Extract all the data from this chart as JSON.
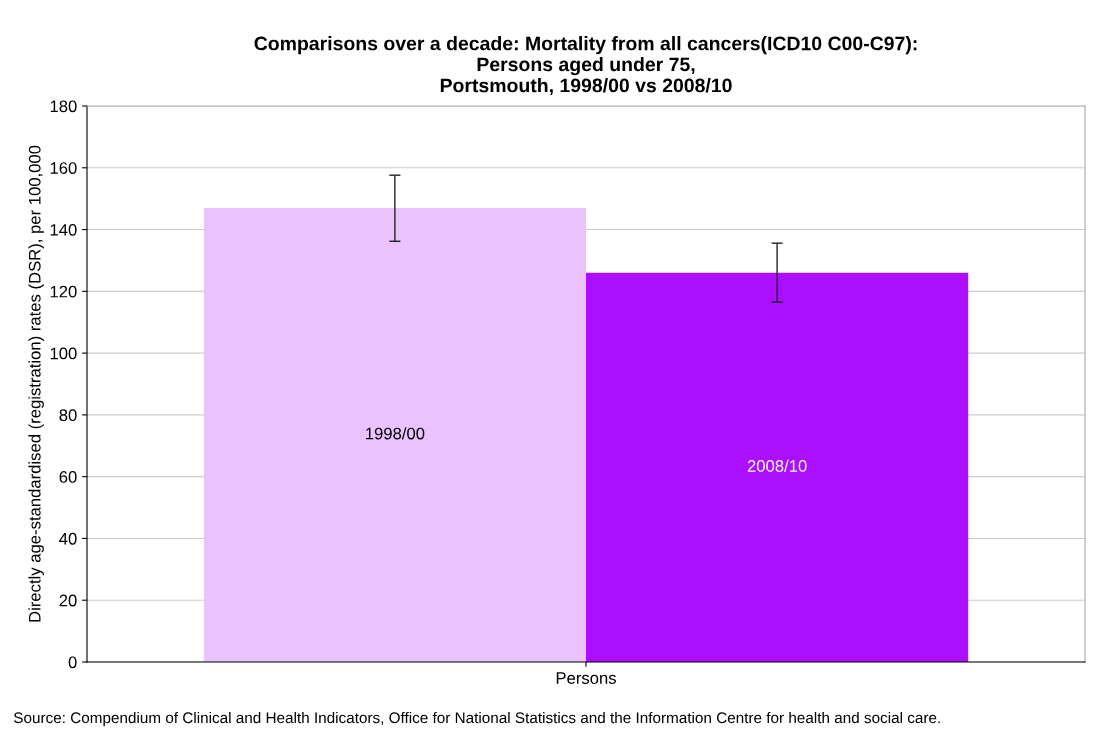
{
  "chart_data": {
    "type": "bar",
    "title": "Comparisons over a decade: Mortality from all cancers(ICD10 C00-C97):\nPersons aged under 75,\nPortsmouth, 1998/00 vs 2008/10",
    "ylabel": "Directly age-standardised (registration) rates (DSR), per 100,000",
    "categories": [
      "Persons"
    ],
    "series": [
      {
        "name": "1998/00",
        "color": "#e9c2fe",
        "values": [
          147
        ],
        "errors": [
          [
            136.2,
            157.6
          ]
        ]
      },
      {
        "name": "2008/10",
        "color": "#ac0fff",
        "values": [
          126
        ],
        "errors": [
          [
            116.5,
            135.6
          ]
        ]
      }
    ],
    "ylim": [
      0,
      180
    ],
    "yticks": [
      0,
      20,
      40,
      60,
      80,
      100,
      120,
      140,
      160,
      180
    ],
    "grid": "y",
    "legend": false,
    "annotations": [
      "Source: Compendium of Clinical and Health Indicators, Office for National Statistics and the Information Centre for health and social care."
    ]
  }
}
